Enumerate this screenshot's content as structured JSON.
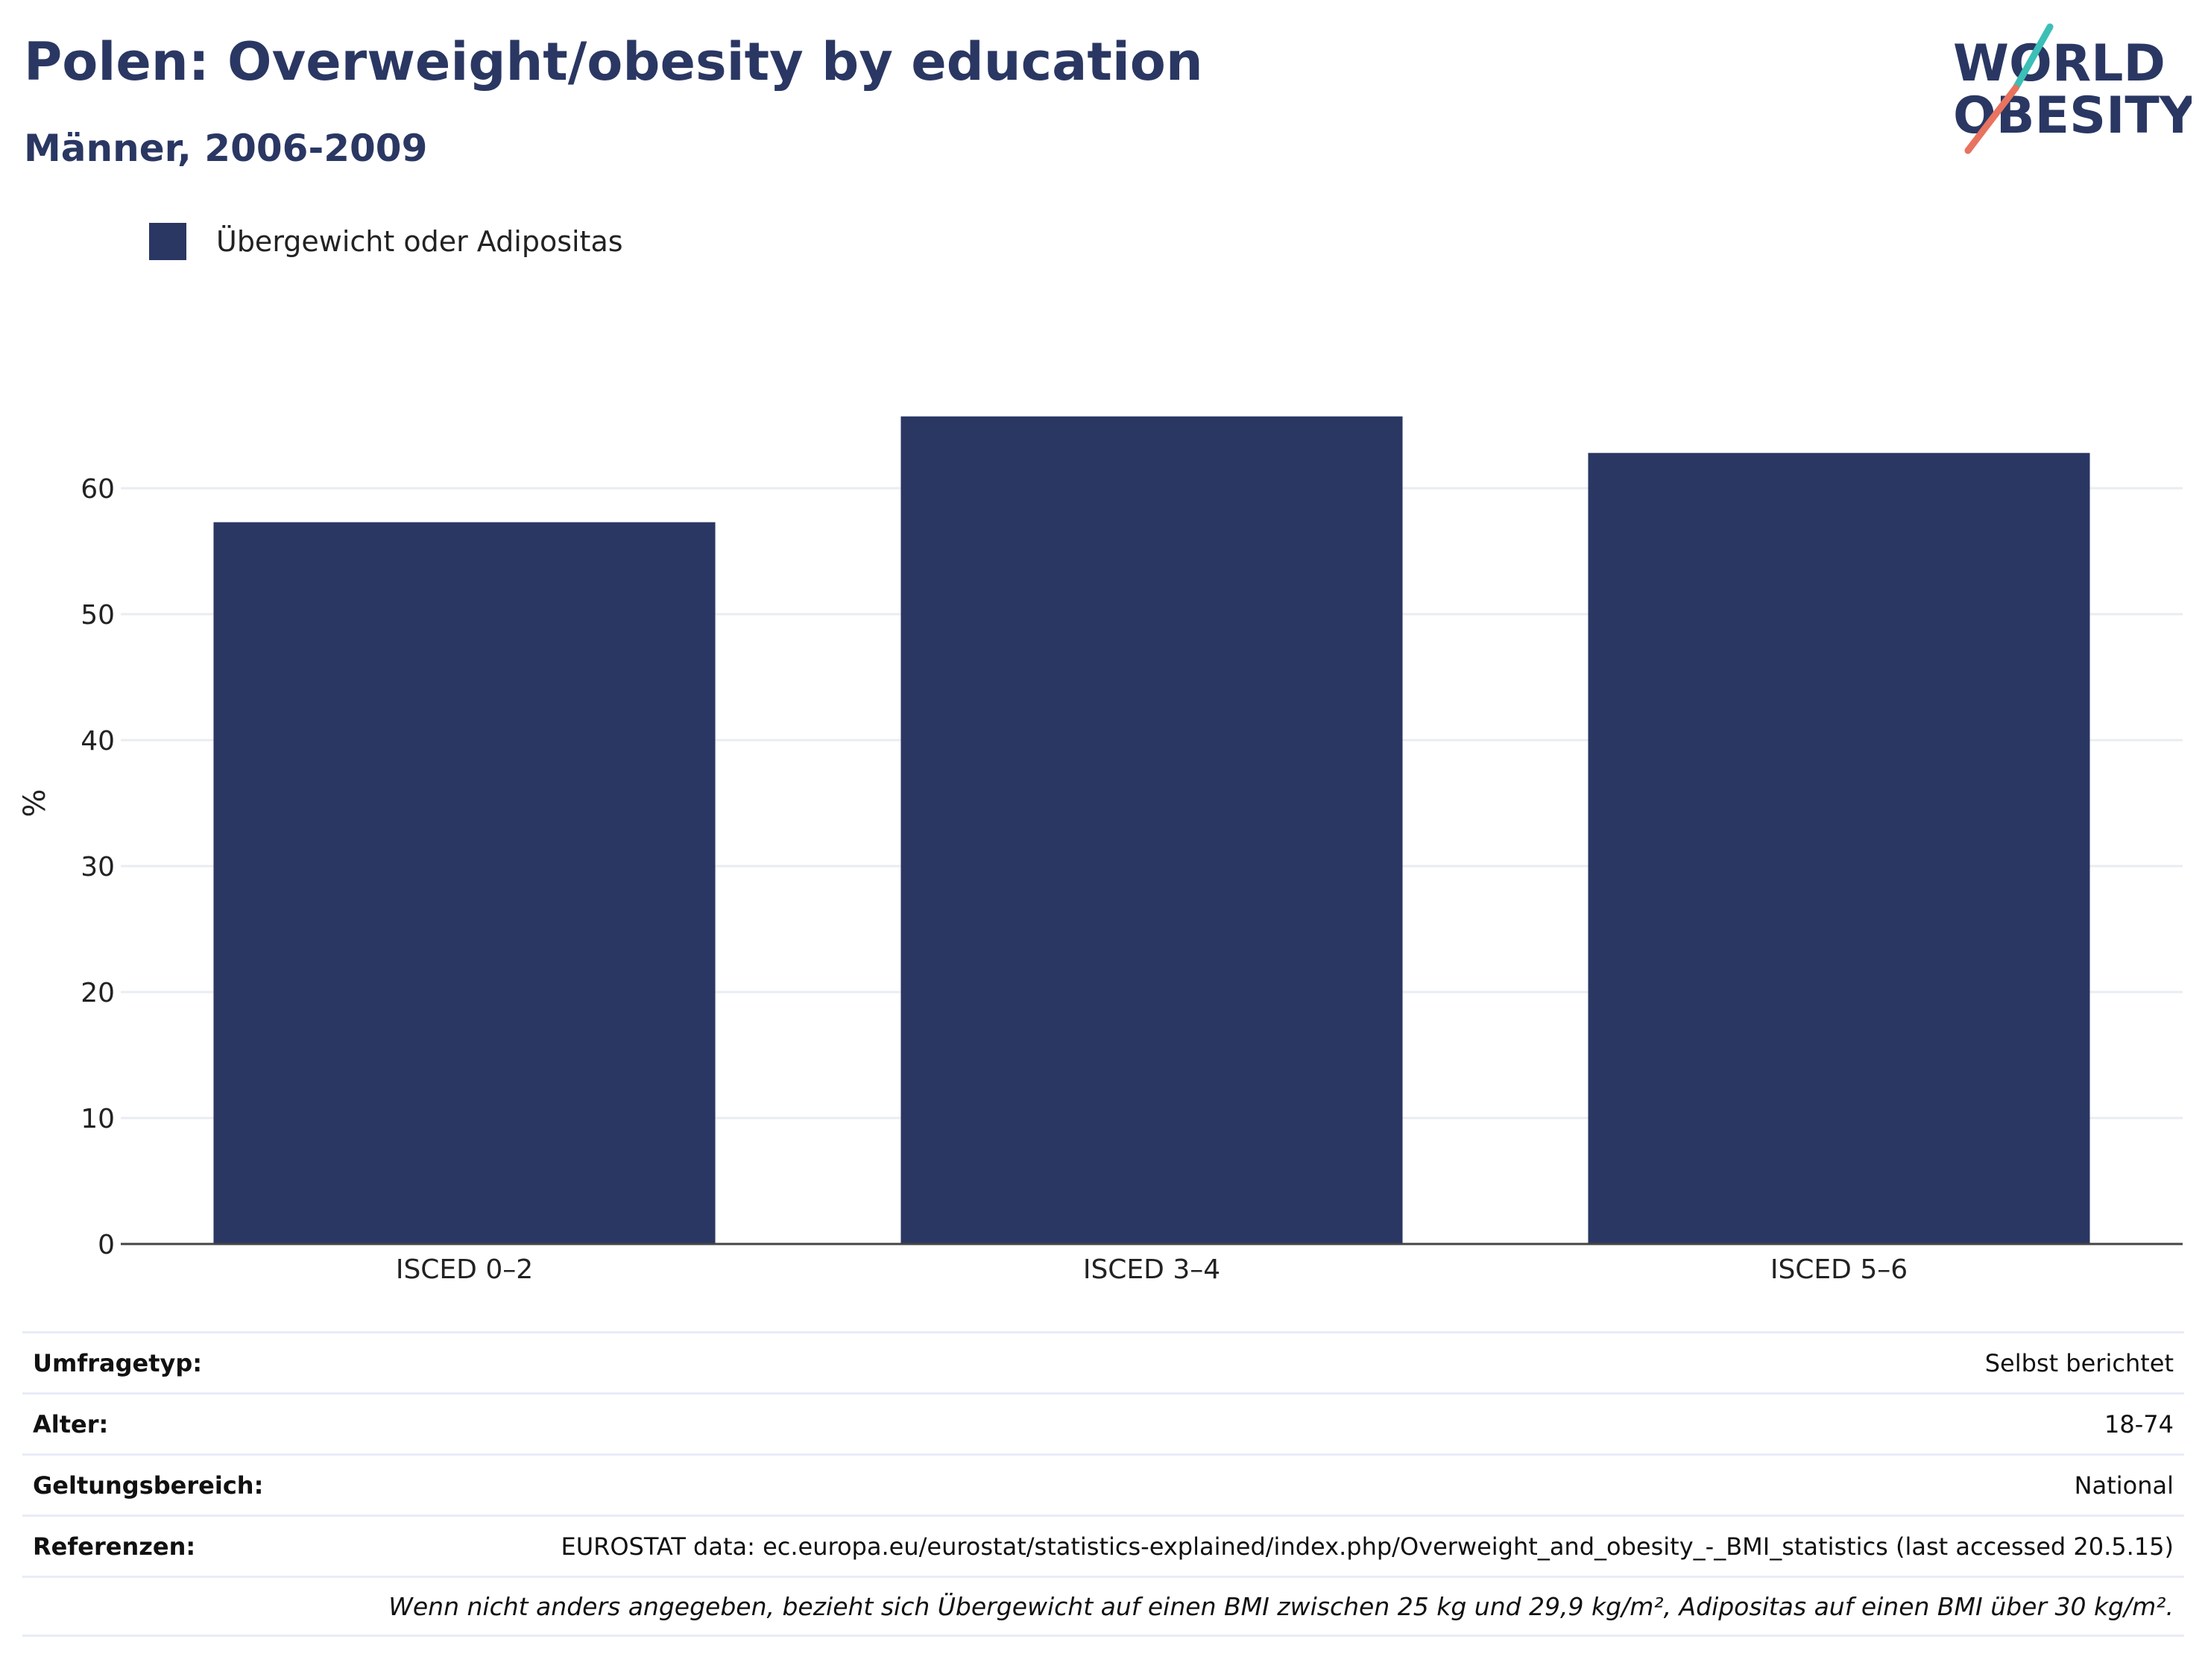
{
  "header": {
    "title": "Polen: Overweight/obesity by education",
    "subtitle": "Männer, 2006-2009"
  },
  "logo": {
    "line1": "WORLD",
    "line2": "OBESITY",
    "icon": "world-obesity-logo"
  },
  "colors": {
    "bar": "#2a3763",
    "text": "#2a3763",
    "grid": "#e9ecf2",
    "logo_teal": "#3bbfb7",
    "logo_coral": "#e8735f"
  },
  "chart_data": {
    "type": "bar",
    "categories": [
      "ISCED 0–2",
      "ISCED 3–4",
      "ISCED 5–6"
    ],
    "series": [
      {
        "name": "Übergewicht oder Adipositas",
        "values": [
          57.3,
          65.7,
          62.8
        ]
      }
    ],
    "ylabel": "%",
    "xlabel": "",
    "ylim": [
      0,
      70
    ],
    "yticks": [
      0,
      10,
      20,
      30,
      40,
      50,
      60
    ],
    "grid": true,
    "legend_position": "top-left"
  },
  "info": [
    {
      "key": "Umfragetyp:",
      "value": "Selbst berichtet"
    },
    {
      "key": "Alter:",
      "value": "18-74"
    },
    {
      "key": "Geltungsbereich:",
      "value": "National"
    },
    {
      "key": "Referenzen:",
      "value": "EUROSTAT data: ec.europa.eu/eurostat/statistics-explained/index.php/Overweight_and_obesity_-_BMI_statistics (last accessed 20.5.15)"
    }
  ],
  "footnote": "Wenn nicht anders angegeben, bezieht sich Übergewicht auf einen BMI zwischen 25 kg und 29,9 kg/m², Adipositas auf einen BMI über 30 kg/m²."
}
